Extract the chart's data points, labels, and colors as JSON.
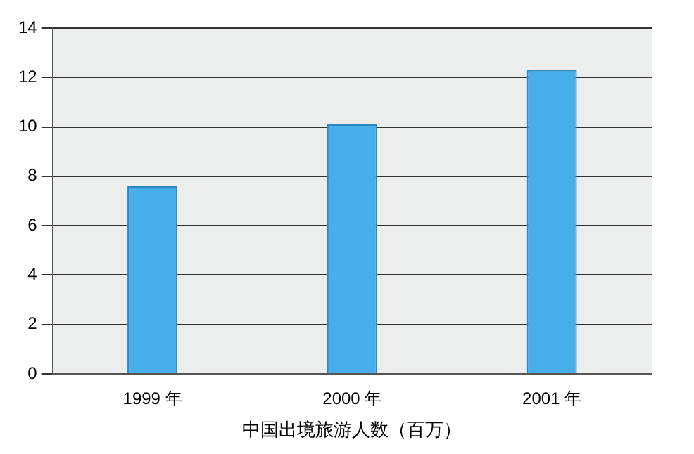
{
  "chart_data": {
    "type": "bar",
    "xlabel": "中国出境旅游人数（百万）",
    "categories": [
      "1999 年",
      "2000 年",
      "2001 年"
    ],
    "values": [
      7.6,
      10.1,
      12.3
    ],
    "color": "#47aeea",
    "ylim": [
      0,
      14
    ],
    "yticks": [
      0,
      2,
      4,
      6,
      8,
      10,
      12,
      14
    ],
    "grid": "y",
    "legend": false
  }
}
